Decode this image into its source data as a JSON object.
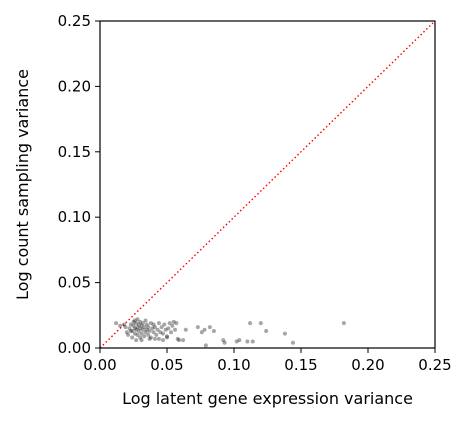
{
  "chart_data": {
    "type": "scatter",
    "xlabel": "Log latent gene expression variance",
    "ylabel": "Log count sampling variance",
    "xlim": [
      0.0,
      0.25
    ],
    "ylim": [
      0.0,
      0.25
    ],
    "xticks": [
      "0.00",
      "0.05",
      "0.10",
      "0.15",
      "0.20",
      "0.25"
    ],
    "yticks": [
      "0.00",
      "0.05",
      "0.10",
      "0.15",
      "0.20",
      "0.25"
    ],
    "grid": false,
    "reference_line": {
      "style": "dotted",
      "color": "#ff0000",
      "from": [
        0.0,
        0.0
      ],
      "to": [
        0.25,
        0.25
      ]
    },
    "point_color": "#000000",
    "points": [
      [
        0.012,
        0.019
      ],
      [
        0.015,
        0.017
      ],
      [
        0.018,
        0.018
      ],
      [
        0.02,
        0.012
      ],
      [
        0.021,
        0.01
      ],
      [
        0.022,
        0.015
      ],
      [
        0.023,
        0.018
      ],
      [
        0.024,
        0.008
      ],
      [
        0.024,
        0.013
      ],
      [
        0.025,
        0.017
      ],
      [
        0.025,
        0.02
      ],
      [
        0.026,
        0.011
      ],
      [
        0.026,
        0.015
      ],
      [
        0.027,
        0.006
      ],
      [
        0.027,
        0.014
      ],
      [
        0.027,
        0.019
      ],
      [
        0.028,
        0.01
      ],
      [
        0.028,
        0.016
      ],
      [
        0.028,
        0.022
      ],
      [
        0.029,
        0.013
      ],
      [
        0.029,
        0.018
      ],
      [
        0.03,
        0.008
      ],
      [
        0.03,
        0.015
      ],
      [
        0.03,
        0.02
      ],
      [
        0.031,
        0.011
      ],
      [
        0.031,
        0.017
      ],
      [
        0.032,
        0.014
      ],
      [
        0.032,
        0.019
      ],
      [
        0.033,
        0.009
      ],
      [
        0.033,
        0.016
      ],
      [
        0.034,
        0.012
      ],
      [
        0.034,
        0.021
      ],
      [
        0.035,
        0.014
      ],
      [
        0.035,
        0.018
      ],
      [
        0.036,
        0.01
      ],
      [
        0.036,
        0.016
      ],
      [
        0.037,
        0.013
      ],
      [
        0.038,
        0.019
      ],
      [
        0.038,
        0.008
      ],
      [
        0.039,
        0.015
      ],
      [
        0.04,
        0.012
      ],
      [
        0.04,
        0.018
      ],
      [
        0.041,
        0.016
      ],
      [
        0.042,
        0.01
      ],
      [
        0.043,
        0.014
      ],
      [
        0.044,
        0.019
      ],
      [
        0.045,
        0.012
      ],
      [
        0.046,
        0.016
      ],
      [
        0.047,
        0.011
      ],
      [
        0.048,
        0.018
      ],
      [
        0.049,
        0.014
      ],
      [
        0.05,
        0.009
      ],
      [
        0.051,
        0.015
      ],
      [
        0.052,
        0.019
      ],
      [
        0.053,
        0.012
      ],
      [
        0.054,
        0.017
      ],
      [
        0.055,
        0.02
      ],
      [
        0.056,
        0.014
      ],
      [
        0.057,
        0.019
      ],
      [
        0.058,
        0.007
      ],
      [
        0.059,
        0.006
      ],
      [
        0.062,
        0.006
      ],
      [
        0.064,
        0.014
      ],
      [
        0.073,
        0.016
      ],
      [
        0.076,
        0.012
      ],
      [
        0.078,
        0.014
      ],
      [
        0.079,
        0.002
      ],
      [
        0.082,
        0.016
      ],
      [
        0.085,
        0.013
      ],
      [
        0.092,
        0.006
      ],
      [
        0.093,
        0.004
      ],
      [
        0.102,
        0.005
      ],
      [
        0.104,
        0.006
      ],
      [
        0.11,
        0.005
      ],
      [
        0.112,
        0.019
      ],
      [
        0.114,
        0.005
      ],
      [
        0.12,
        0.019
      ],
      [
        0.124,
        0.013
      ],
      [
        0.138,
        0.011
      ],
      [
        0.144,
        0.004
      ],
      [
        0.182,
        0.019
      ],
      [
        0.019,
        0.016
      ],
      [
        0.023,
        0.013
      ],
      [
        0.026,
        0.021
      ],
      [
        0.031,
        0.006
      ],
      [
        0.037,
        0.007
      ],
      [
        0.041,
        0.007
      ],
      [
        0.044,
        0.007
      ],
      [
        0.047,
        0.006
      ],
      [
        0.05,
        0.008
      ]
    ]
  }
}
